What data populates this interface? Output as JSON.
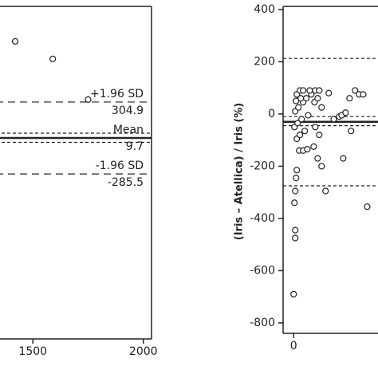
{
  "chart_data": [
    {
      "type": "scatter",
      "x": [
        1420,
        1590,
        1750
      ],
      "values": [
        803,
        659,
        325
      ],
      "xlim": [
        1333,
        2037
      ],
      "xticks": [
        1500,
        2000
      ],
      "ylim": [
        -1640,
        1090
      ],
      "color": "#222222",
      "lines": [
        {
          "label": "+1.96 SD",
          "value": 304.9,
          "style": "dashed"
        },
        {
          "label": "Mean",
          "value": 9.7,
          "style": "solid"
        },
        {
          "value": 49,
          "style": "dashed"
        },
        {
          "value": -26,
          "style": "dashed"
        },
        {
          "label": "-1.96 SD",
          "value": -285.5,
          "style": "dashed"
        }
      ]
    },
    {
      "type": "scatter",
      "y_label": "(Iris – Atellica) / Iris (%)",
      "x": [
        0,
        6,
        6,
        3,
        6,
        9,
        12,
        21,
        36,
        52,
        12,
        24,
        42,
        3,
        15,
        30,
        55,
        6,
        18,
        36,
        48,
        67,
        12,
        24,
        36,
        61,
        82,
        97,
        9,
        27,
        79,
        91,
        106,
        82,
        97,
        76,
        91,
        106,
        121,
        133,
        173,
        182,
        188,
        197,
        212,
        233,
        248,
        264,
        218,
        279,
        152
      ],
      "values": [
        -690,
        -475,
        -445,
        -340,
        -295,
        -245,
        -215,
        -140,
        -140,
        -135,
        -95,
        -80,
        -65,
        -50,
        -35,
        -20,
        -5,
        10,
        25,
        45,
        60,
        75,
        75,
        90,
        90,
        90,
        90,
        90,
        50,
        60,
        45,
        60,
        25,
        -50,
        -80,
        -125,
        -170,
        -200,
        -295,
        80,
        -10,
        -5,
        -170,
        5,
        60,
        90,
        75,
        75,
        -65,
        -355,
        -20
      ],
      "xlim": [
        -40,
        320
      ],
      "xticks": [
        0
      ],
      "ylim": [
        -840,
        412
      ],
      "yticks": [
        -800,
        -600,
        -400,
        -200,
        0,
        200,
        400
      ],
      "color": "#222222",
      "lines": [
        {
          "value": 213,
          "style": "dashed"
        },
        {
          "value": -10,
          "style": "dashed"
        },
        {
          "value": -30,
          "style": "solid"
        },
        {
          "value": -45,
          "style": "dashed"
        },
        {
          "value": -275,
          "style": "dashed"
        }
      ]
    }
  ]
}
